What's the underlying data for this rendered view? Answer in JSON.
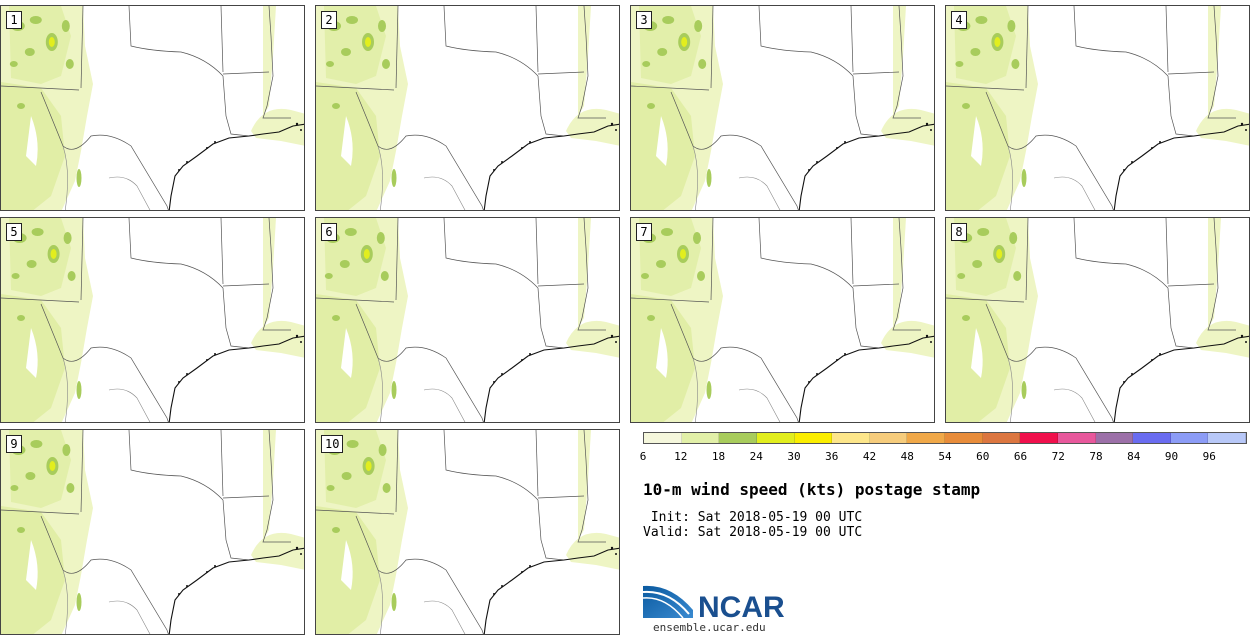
{
  "panels": [
    {
      "member": "1"
    },
    {
      "member": "2"
    },
    {
      "member": "3"
    },
    {
      "member": "4"
    },
    {
      "member": "5"
    },
    {
      "member": "6"
    },
    {
      "member": "7"
    },
    {
      "member": "8"
    },
    {
      "member": "9"
    },
    {
      "member": "10"
    }
  ],
  "colorbar": {
    "ticks": [
      "6",
      "12",
      "18",
      "24",
      "30",
      "36",
      "42",
      "48",
      "54",
      "60",
      "66",
      "72",
      "78",
      "84",
      "90",
      "96"
    ],
    "colors": [
      "#f5f7dc",
      "#e2f0a8",
      "#a8cc5c",
      "#e2ee1e",
      "#fbee00",
      "#fde68a",
      "#f6cc7c",
      "#f0a848",
      "#e88c3a",
      "#dc7640",
      "#f0104c",
      "#e8589c",
      "#9c70a8",
      "#6a6cf0",
      "#8c9cf6",
      "#b8c8f8"
    ],
    "tick_positions": [
      6,
      12,
      18,
      24,
      30,
      36,
      42,
      48,
      54,
      60,
      66,
      72,
      78,
      84,
      90,
      96
    ],
    "range": [
      6,
      102
    ]
  },
  "title": "10-m wind speed (kts) postage stamp",
  "init_line": " Init: Sat 2018-05-19 00 UTC",
  "valid_line": "Valid: Sat 2018-05-19 00 UTC",
  "logo": {
    "text": "NCAR",
    "url": "ensemble.ucar.edu"
  }
}
